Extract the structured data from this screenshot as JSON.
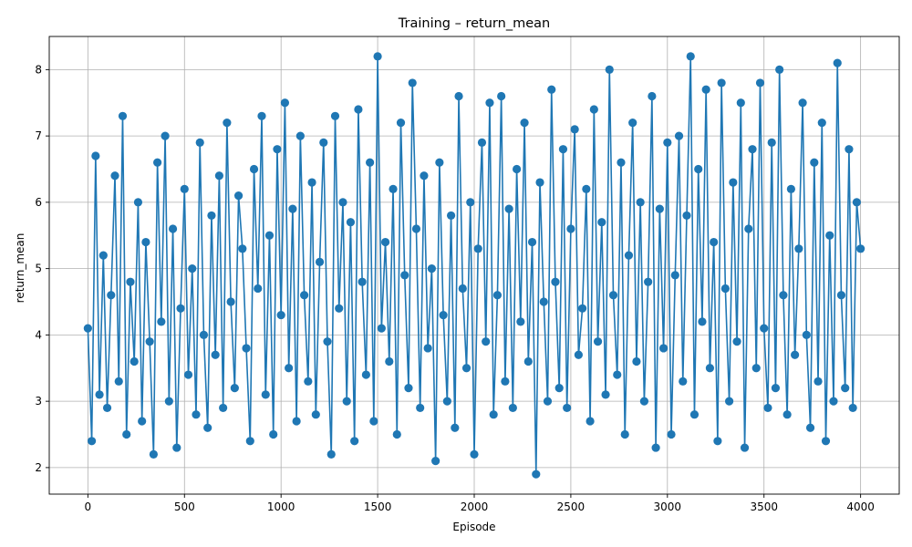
{
  "chart_data": {
    "type": "line",
    "title": "Training – return_mean",
    "xlabel": "Episode",
    "ylabel": "return_mean",
    "xlim": [
      -200,
      4200
    ],
    "ylim": [
      1.6,
      8.5
    ],
    "xticks": [
      0,
      500,
      1000,
      1500,
      2000,
      2500,
      3000,
      3500,
      4000
    ],
    "yticks": [
      2,
      3,
      4,
      5,
      6,
      7,
      8
    ],
    "grid": true,
    "line_color": "#1f77b4",
    "markers": true,
    "series": [
      {
        "x": [
          0,
          20,
          40,
          60,
          80,
          100,
          120,
          140,
          160,
          180,
          200,
          220,
          240,
          260,
          280,
          300,
          320,
          340,
          360,
          380,
          400,
          420,
          440,
          460,
          480,
          500,
          520,
          540,
          560,
          580,
          600,
          620,
          640,
          660,
          680,
          700,
          720,
          740,
          760,
          780,
          800,
          820,
          840,
          860,
          880,
          900,
          920,
          940,
          960,
          980,
          1000,
          1020,
          1040,
          1060,
          1080,
          1100,
          1120,
          1140,
          1160,
          1180,
          1200,
          1220,
          1240,
          1260,
          1280,
          1300,
          1320,
          1340,
          1360,
          1380,
          1400,
          1420,
          1440,
          1460,
          1480,
          1500,
          1520,
          1540,
          1560,
          1580,
          1600,
          1620,
          1640,
          1660,
          1680,
          1700,
          1720,
          1740,
          1760,
          1780,
          1800,
          1820,
          1840,
          1860,
          1880,
          1900,
          1920,
          1940,
          1960,
          1980,
          2000,
          2020,
          2040,
          2060,
          2080,
          2100,
          2120,
          2140,
          2160,
          2180,
          2200,
          2220,
          2240,
          2260,
          2280,
          2300,
          2320,
          2340,
          2360,
          2380,
          2400,
          2420,
          2440,
          2460,
          2480,
          2500,
          2520,
          2540,
          2560,
          2580,
          2600,
          2620,
          2640,
          2660,
          2680,
          2700,
          2720,
          2740,
          2760,
          2780,
          2800,
          2820,
          2840,
          2860,
          2880,
          2900,
          2920,
          2940,
          2960,
          2980,
          3000,
          3020,
          3040,
          3060,
          3080,
          3100,
          3120,
          3140,
          3160,
          3180,
          3200,
          3220,
          3240,
          3260,
          3280,
          3300,
          3320,
          3340,
          3360,
          3380,
          3400,
          3420,
          3440,
          3460,
          3480,
          3500,
          3520,
          3540,
          3560,
          3580,
          3600,
          3620,
          3640,
          3660,
          3680,
          3700,
          3720,
          3740,
          3760,
          3780,
          3800,
          3820,
          3840,
          3860,
          3880,
          3900,
          3920,
          3940,
          3960,
          3980,
          4000
        ],
        "y": [
          4.1,
          2.4,
          6.7,
          3.1,
          5.2,
          2.9,
          4.6,
          6.4,
          3.3,
          7.3,
          2.5,
          4.8,
          3.6,
          6.0,
          2.7,
          5.4,
          3.9,
          2.2,
          6.6,
          4.2,
          7.0,
          3.0,
          5.6,
          2.3,
          4.4,
          6.2,
          3.4,
          5.0,
          2.8,
          6.9,
          4.0,
          2.6,
          5.8,
          3.7,
          6.4,
          2.9,
          7.2,
          4.5,
          3.2,
          6.1,
          5.3,
          3.8,
          2.4,
          6.5,
          4.7,
          7.3,
          3.1,
          5.5,
          2.5,
          6.8,
          4.3,
          7.5,
          3.5,
          5.9,
          2.7,
          7.0,
          4.6,
          3.3,
          6.3,
          2.8,
          5.1,
          6.9,
          3.9,
          2.2,
          7.3,
          4.4,
          6.0,
          3.0,
          5.7,
          2.4,
          7.4,
          4.8,
          3.4,
          6.6,
          2.7,
          8.2,
          4.1,
          5.4,
          3.6,
          6.2,
          2.5,
          7.2,
          4.9,
          3.2,
          7.8,
          5.6,
          2.9,
          6.4,
          3.8,
          5.0,
          2.1,
          6.6,
          4.3,
          3.0,
          5.8,
          2.6,
          7.6,
          4.7,
          3.5,
          6.0,
          2.2,
          5.3,
          6.9,
          3.9,
          7.5,
          2.8,
          4.6,
          7.6,
          3.3,
          5.9,
          2.9,
          6.5,
          4.2,
          7.2,
          3.6,
          5.4,
          1.9,
          6.3,
          4.5,
          3.0,
          7.7,
          4.8,
          3.2,
          6.8,
          2.9,
          5.6,
          7.1,
          3.7,
          4.4,
          6.2,
          2.7,
          7.4,
          3.9,
          5.7,
          3.1,
          8.0,
          4.6,
          3.4,
          6.6,
          2.5,
          5.2,
          7.2,
          3.6,
          6.0,
          3.0,
          4.8,
          7.6,
          2.3,
          5.9,
          3.8,
          6.9,
          2.5,
          4.9,
          7.0,
          3.3,
          5.8,
          8.2,
          2.8,
          6.5,
          4.2,
          7.7,
          3.5,
          5.4,
          2.4,
          7.8,
          4.7,
          3.0,
          6.3,
          3.9,
          7.5,
          2.3,
          5.6,
          6.8,
          3.5,
          7.8,
          4.1,
          2.9,
          6.9,
          3.2,
          8.0,
          4.6,
          2.8,
          6.2,
          3.7,
          5.3,
          7.5,
          4.0,
          2.6,
          6.6,
          3.3,
          7.2,
          2.4,
          5.5,
          3.0,
          8.1,
          4.6,
          3.2,
          6.8,
          2.9,
          6.0,
          5.3
        ]
      }
    ]
  }
}
